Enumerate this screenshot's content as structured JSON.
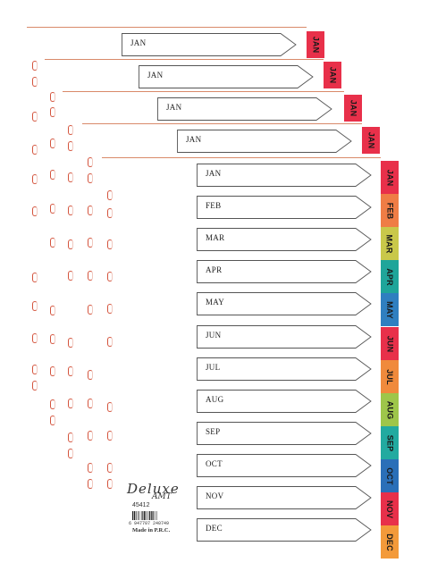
{
  "back_sheets": [
    {
      "arrow_label": "JAN",
      "tab_label": "JAN",
      "tab_color": "#e8304a"
    },
    {
      "arrow_label": "JAN",
      "tab_label": "JAN",
      "tab_color": "#e8304a"
    },
    {
      "arrow_label": "JAN",
      "tab_label": "JAN",
      "tab_color": "#e8304a"
    },
    {
      "arrow_label": "JAN",
      "tab_label": "JAN",
      "tab_color": "#e8304a"
    }
  ],
  "front_sheet": {
    "months": [
      {
        "arrow_label": "JAN",
        "tab_label": "JAN",
        "tab_color": "#e8304a"
      },
      {
        "arrow_label": "FEB",
        "tab_label": "FEB",
        "tab_color": "#ef7d45"
      },
      {
        "arrow_label": "MAR",
        "tab_label": "MAR",
        "tab_color": "#c9c84a"
      },
      {
        "arrow_label": "APR",
        "tab_label": "APR",
        "tab_color": "#1fa59a"
      },
      {
        "arrow_label": "MAY",
        "tab_label": "MAY",
        "tab_color": "#2f7fc0"
      },
      {
        "arrow_label": "JUN",
        "tab_label": "JUN",
        "tab_color": "#e8304a"
      },
      {
        "arrow_label": "JUL",
        "tab_label": "JUL",
        "tab_color": "#f08a3c"
      },
      {
        "arrow_label": "AUG",
        "tab_label": "AUG",
        "tab_color": "#9ec64a"
      },
      {
        "arrow_label": "SEP",
        "tab_label": "SEP",
        "tab_color": "#22aaa0"
      },
      {
        "arrow_label": "OCT",
        "tab_label": "OCT",
        "tab_color": "#2a6fb8"
      },
      {
        "arrow_label": "NOV",
        "tab_label": "NOV",
        "tab_color": "#e8304a"
      },
      {
        "arrow_label": "DEC",
        "tab_label": "DEC",
        "tab_color": "#f39a3a"
      }
    ]
  },
  "brand": {
    "name": "Deluxe",
    "subline": "AMT",
    "code": "45412",
    "barcode_number": "6 947707 240749",
    "made_in": "Made in P.R.C."
  },
  "colors": {
    "hole_outline": "#d4543d",
    "sheet_edge": "#d98a6a",
    "arrow_outline": "#555555"
  }
}
